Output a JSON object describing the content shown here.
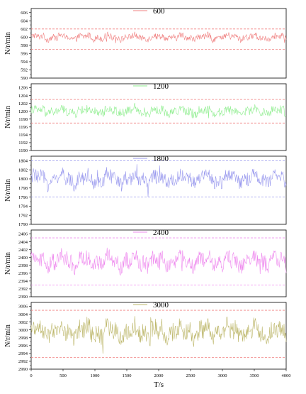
{
  "chart_data": [
    {
      "type": "line",
      "series": [
        {
          "name": "600",
          "color": "#f08080",
          "baseline": 600,
          "amplitude": 1.0
        }
      ],
      "ylabel": "N/r/min",
      "ylim": [
        590,
        607
      ],
      "yticks": [
        590,
        592,
        594,
        596,
        598,
        600,
        602,
        604,
        606
      ],
      "reference_lines": [
        602,
        597
      ],
      "reference_color": "#f08080",
      "xlim": [
        0,
        4000
      ],
      "grid": false,
      "legend": "top-center"
    },
    {
      "type": "line",
      "series": [
        {
          "name": "1200",
          "color": "#90ee90",
          "baseline": 1200,
          "amplitude": 1.4
        }
      ],
      "ylabel": "N/r/min",
      "ylim": [
        1190,
        1207
      ],
      "yticks": [
        1190,
        1192,
        1194,
        1196,
        1198,
        1200,
        1202,
        1204,
        1206
      ],
      "reference_lines": [
        1203,
        1197
      ],
      "reference_color": "#f08080",
      "xlim": [
        0,
        4000
      ],
      "grid": false,
      "legend": "top-center"
    },
    {
      "type": "line",
      "series": [
        {
          "name": "1800",
          "color": "#9999ee",
          "baseline": 1800,
          "amplitude": 2.0
        }
      ],
      "ylabel": "N/r/min",
      "ylim": [
        1790,
        1805
      ],
      "yticks": [
        1790,
        1792,
        1794,
        1796,
        1798,
        1800,
        1802,
        1804
      ],
      "reference_lines": [
        1804,
        1796
      ],
      "reference_color": "#9999ee",
      "xlim": [
        0,
        4000
      ],
      "grid": false,
      "legend": "top-center"
    },
    {
      "type": "line",
      "series": [
        {
          "name": "2400",
          "color": "#ee88ee",
          "baseline": 2399,
          "amplitude": 2.6
        }
      ],
      "ylabel": "N/r/min",
      "ylim": [
        2390,
        2407
      ],
      "yticks": [
        2390,
        2392,
        2394,
        2396,
        2398,
        2400,
        2402,
        2404,
        2406
      ],
      "reference_lines": [
        2405,
        2393
      ],
      "reference_color": "#ee88ee",
      "xlim": [
        0,
        4000
      ],
      "grid": false,
      "legend": "top-center"
    },
    {
      "type": "line",
      "series": [
        {
          "name": "3000",
          "color": "#bdb76b",
          "baseline": 2999.5,
          "amplitude": 3.0
        }
      ],
      "ylabel": "N/r/min",
      "xlabel": "T/s",
      "ylim": [
        2990,
        3007
      ],
      "yticks": [
        2990,
        2992,
        2994,
        2996,
        2998,
        3000,
        3002,
        3004,
        3006
      ],
      "reference_lines": [
        3005,
        2993
      ],
      "reference_color": "#f08080",
      "xlim": [
        0,
        4000
      ],
      "xticks": [
        0,
        500,
        1000,
        1500,
        2000,
        2500,
        3000,
        3500,
        4000
      ],
      "grid": false,
      "legend": "top-center"
    }
  ]
}
